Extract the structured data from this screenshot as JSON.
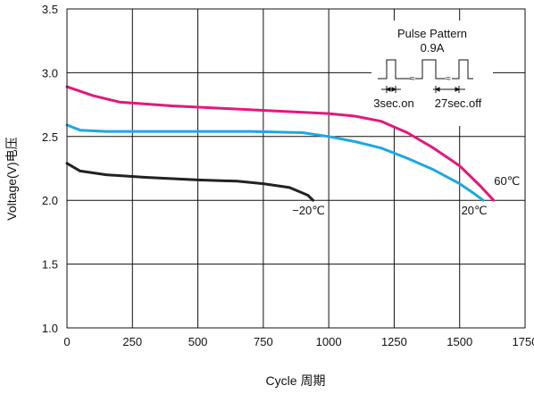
{
  "chart_data": {
    "type": "line",
    "xlabel": "Cycle 周期",
    "ylabel": "Voltage(V)电压",
    "xlim": [
      0,
      1750
    ],
    "ylim": [
      1.0,
      3.5
    ],
    "x_ticks": [
      "0",
      "250",
      "500",
      "750",
      "1000",
      "1250",
      "1500",
      "1750"
    ],
    "y_ticks": [
      "1.0",
      "1.5",
      "2.0",
      "2.5",
      "3.0",
      "3.5"
    ],
    "grid": true,
    "series": [
      {
        "name": "60℃",
        "color": "#e2197c",
        "points": [
          [
            0,
            2.89
          ],
          [
            100,
            2.82
          ],
          [
            200,
            2.77
          ],
          [
            400,
            2.74
          ],
          [
            600,
            2.72
          ],
          [
            800,
            2.7
          ],
          [
            1000,
            2.68
          ],
          [
            1100,
            2.66
          ],
          [
            1200,
            2.62
          ],
          [
            1300,
            2.53
          ],
          [
            1400,
            2.41
          ],
          [
            1500,
            2.27
          ],
          [
            1580,
            2.11
          ],
          [
            1630,
            2.0
          ]
        ]
      },
      {
        "name": "20℃",
        "color": "#1da8e1",
        "points": [
          [
            0,
            2.59
          ],
          [
            50,
            2.55
          ],
          [
            150,
            2.54
          ],
          [
            400,
            2.54
          ],
          [
            700,
            2.54
          ],
          [
            900,
            2.53
          ],
          [
            1000,
            2.5
          ],
          [
            1100,
            2.46
          ],
          [
            1200,
            2.41
          ],
          [
            1300,
            2.33
          ],
          [
            1400,
            2.24
          ],
          [
            1500,
            2.13
          ],
          [
            1550,
            2.06
          ],
          [
            1590,
            2.0
          ]
        ]
      },
      {
        "name": "−20℃",
        "color": "#222222",
        "points": [
          [
            0,
            2.29
          ],
          [
            50,
            2.23
          ],
          [
            150,
            2.2
          ],
          [
            300,
            2.18
          ],
          [
            500,
            2.16
          ],
          [
            650,
            2.15
          ],
          [
            750,
            2.13
          ],
          [
            850,
            2.1
          ],
          [
            920,
            2.04
          ],
          [
            940,
            2.0
          ]
        ]
      }
    ],
    "inset": {
      "title": "Pulse  Pattern",
      "current": "0.9A",
      "on_label": "3sec.on",
      "off_label": "27sec.off"
    }
  }
}
